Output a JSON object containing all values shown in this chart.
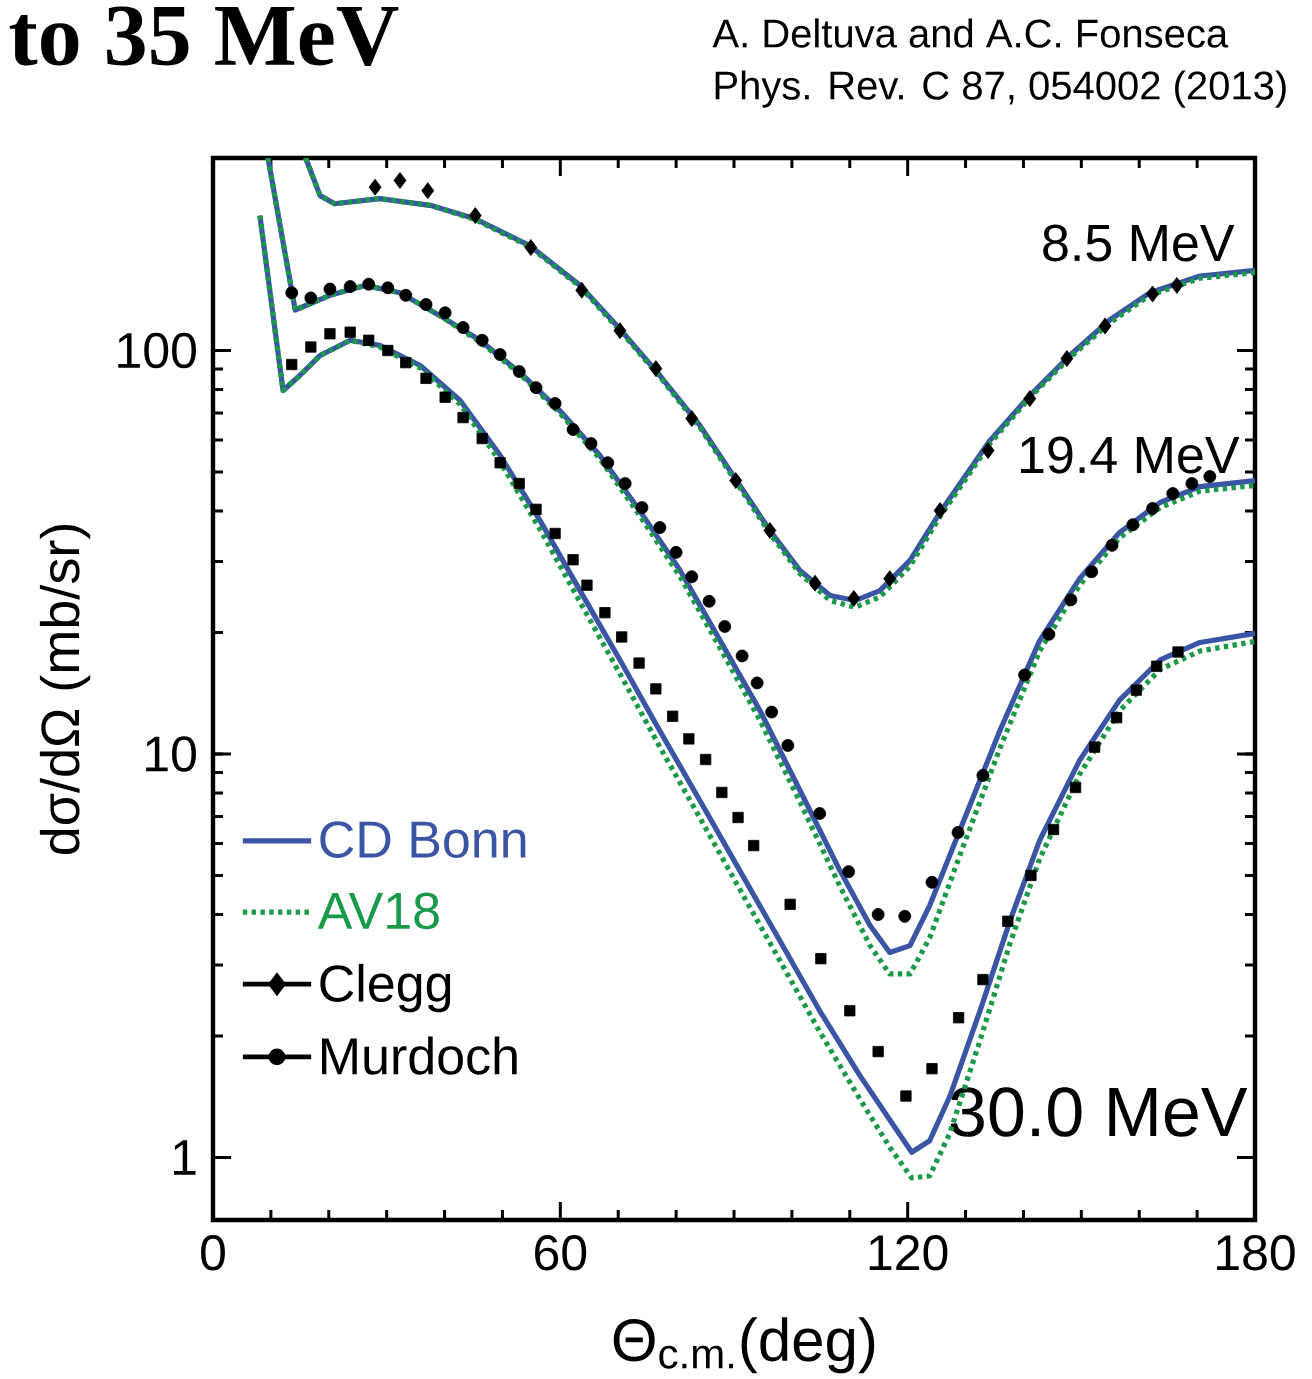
{
  "chart_data": {
    "type": "line",
    "title": "to 35 MeV",
    "xlabel": "Θ$_{c.m.}$(deg)",
    "ylabel": "dσ/dΩ (mb/sr)",
    "annotations": [
      "A. Deltuva and A.C. Fonseca",
      "Phys. Rev. C 87, 054002 (2013)",
      "8.5 MeV",
      "19.4 MeV",
      "30.0 MeV"
    ],
    "xlim": [
      0,
      180
    ],
    "ylim": [
      0.7,
      300
    ],
    "xticks": [
      0,
      60,
      120,
      180
    ],
    "yticks": [
      1,
      10,
      100
    ],
    "log": "y",
    "legend": "left",
    "series": [
      {
        "name": "CD Bonn",
        "type": "line",
        "color": "#3a55a4",
        "line_style": "solid",
        "marker": "none",
        "x": [
          16,
          18.5,
          21,
          28.8,
          37.5,
          45.3,
          54.7,
          63.4,
          70.3,
          77.2,
          84.1,
          90.2,
          96.2,
          101.4,
          106.6,
          110.9,
          115.2,
          120.4,
          125.6,
          134.2,
          141.1,
          148,
          154.9,
          161.8,
          170.5,
          180
        ],
        "values": [
          300,
          242,
          231,
          238,
          229,
          212,
          182,
          145,
          113,
          86.7,
          65.2,
          48.2,
          35.8,
          28.5,
          24.7,
          24.0,
          25.4,
          30.2,
          39.7,
          59.8,
          77.3,
          97.2,
          119,
          139,
          153,
          158
        ]
      },
      {
        "type": "line",
        "color": "#3a55a4",
        "line_style": "solid",
        "marker": "none",
        "x": [
          9.5,
          14.2,
          20.2,
          26.3,
          32.3,
          39.2,
          46.1,
          53,
          59.9,
          66.8,
          73.7,
          80.7,
          87.6,
          94.5,
          101.4,
          108.3,
          113.5,
          116.9,
          120.4,
          123.8,
          129,
          135.9,
          142.8,
          149.7,
          156.6,
          163.6,
          170.5,
          180
        ],
        "values": [
          300,
          126,
          137,
          145,
          139,
          122,
          106,
          88.2,
          71.0,
          55.0,
          40.1,
          28.5,
          19.1,
          12.8,
          8.12,
          5.14,
          3.76,
          3.22,
          3.35,
          4.21,
          6.46,
          11.4,
          19.1,
          27.2,
          35.4,
          42.0,
          46.0,
          47.6
        ]
      },
      {
        "type": "line",
        "color": "#3a55a4",
        "line_style": "solid",
        "marker": "none",
        "x": [
          8.1,
          12.1,
          15,
          18.5,
          23.7,
          28.8,
          35.8,
          42.7,
          49.6,
          56.5,
          63.4,
          70.3,
          77.2,
          84.1,
          91,
          97.9,
          104.8,
          111.7,
          116.9,
          120.7,
          123.8,
          127.3,
          132.5,
          137.7,
          142.8,
          149.7,
          156.6,
          163.6,
          170.5,
          180
        ],
        "values": [
          216,
          79.6,
          86.7,
          97.2,
          106,
          103,
          91.8,
          75.2,
          55.0,
          37.9,
          25.4,
          17.1,
          11.4,
          7.67,
          5.14,
          3.45,
          2.31,
          1.6,
          1.24,
          1.03,
          1.1,
          1.42,
          2.31,
          3.87,
          6.11,
          9.64,
          13.6,
          17.1,
          18.9,
          19.9
        ]
      },
      {
        "name": "AV18",
        "type": "line",
        "color": "#1a9a48",
        "line_style": "dotted",
        "marker": "none",
        "x": [
          16,
          18.5,
          21,
          28.8,
          37.5,
          45.3,
          54.7,
          63.4,
          70.3,
          77.2,
          84.1,
          90.2,
          96.2,
          101.4,
          106.6,
          110.9,
          115.2,
          120.4,
          125.6,
          134.2,
          141.1,
          148,
          154.9,
          161.8,
          170.5,
          180
        ],
        "values": [
          300,
          242,
          231,
          238,
          229,
          211,
          181,
          144,
          112,
          86,
          64.5,
          47.6,
          35.2,
          28.0,
          24.0,
          23.1,
          24.5,
          29.2,
          38.8,
          58.8,
          76.5,
          96,
          117,
          137,
          151,
          156
        ]
      },
      {
        "type": "line",
        "color": "#1a9a48",
        "line_style": "dotted",
        "marker": "none",
        "x": [
          9.5,
          14.2,
          20.2,
          26.3,
          32.3,
          39.2,
          46.1,
          53,
          59.9,
          66.8,
          73.7,
          80.7,
          87.6,
          94.5,
          101.4,
          108.3,
          113.5,
          116.9,
          120.4,
          123.8,
          129,
          135.9,
          142.8,
          149.7,
          156.6,
          163.6,
          170.5,
          180
        ],
        "values": [
          300,
          126,
          137,
          145,
          139,
          122,
          105,
          87.5,
          70.0,
          54.0,
          39.0,
          27.5,
          18.3,
          12.1,
          7.6,
          4.7,
          3.35,
          2.85,
          2.85,
          3.5,
          5.6,
          10.3,
          18.0,
          26.2,
          34.3,
          40.8,
          44.8,
          46.3
        ]
      },
      {
        "type": "line",
        "color": "#1a9a48",
        "line_style": "dotted",
        "marker": "none",
        "x": [
          8.1,
          12.1,
          15,
          18.5,
          23.7,
          28.8,
          35.8,
          42.7,
          49.6,
          56.5,
          63.4,
          70.3,
          77.2,
          84.1,
          91,
          97.9,
          104.8,
          111.7,
          116.9,
          120.7,
          123.8,
          127.3,
          132.5,
          137.7,
          142.8,
          149.7,
          156.6,
          163.6,
          170.5,
          180
        ],
        "values": [
          216,
          79.6,
          86.7,
          97.2,
          106,
          102,
          90.5,
          73.5,
          53.0,
          36.0,
          23.8,
          15.8,
          10.4,
          6.95,
          4.62,
          3.08,
          2.05,
          1.4,
          1.06,
          0.89,
          0.9,
          1.15,
          1.95,
          3.4,
          5.5,
          8.9,
          12.8,
          16.2,
          18.0,
          19.0
        ]
      },
      {
        "name": "Clegg",
        "type": "scatter",
        "color": "#000000",
        "marker": "diamond",
        "x": [
          28,
          32.3,
          37.1,
          45.3,
          54.9,
          63.7,
          70.3,
          76.5,
          82.7,
          90.3,
          96.2,
          104,
          110.7,
          116.9,
          125.6,
          133.9,
          141.1,
          147.5,
          154.1,
          162.3,
          166.5
        ],
        "values": [
          254,
          264,
          249,
          216,
          180,
          141,
          112,
          90.2,
          67.8,
          47.6,
          35.8,
          26.5,
          24.3,
          27.2,
          40.1,
          56.5,
          76.0,
          95.5,
          115,
          138,
          145
        ]
      },
      {
        "name": "Murdoch",
        "type": "scatter",
        "color": "#000000",
        "marker": "circle",
        "x": [
          13.6,
          16.9,
          20.2,
          23.7,
          26.9,
          30.2,
          33.3,
          36.8,
          40.1,
          43.2,
          46.5,
          49.6,
          52.9,
          55.8,
          59.1,
          62.2,
          65.3,
          68.2,
          71.2,
          74.1,
          77.2,
          80,
          82.7,
          85.7,
          88.4,
          91.4,
          94,
          96.5,
          99.3,
          104.8,
          109.8,
          114.9,
          119.5,
          124.2,
          128.7,
          133,
          140.2,
          144.4,
          148.2,
          151.8,
          155.3,
          158.9,
          162.3,
          165.8,
          169.1,
          172.2
        ],
        "values": [
          139,
          135,
          142,
          144,
          146,
          143,
          137,
          130,
          124,
          114,
          106,
          97.7,
          88.7,
          80.9,
          73.9,
          63.7,
          58.8,
          52.7,
          46.8,
          40.8,
          36.4,
          31.6,
          27.5,
          23.9,
          20.7,
          17.5,
          15.0,
          12.7,
          10.5,
          7.12,
          5.11,
          4.0,
          3.96,
          4.81,
          6.39,
          8.85,
          15.7,
          19.8,
          24.1,
          28.3,
          32.9,
          37.0,
          40.6,
          44.2,
          46.8,
          48.7
        ]
      },
      {
        "type": "scatter",
        "color": "#000000",
        "marker": "square",
        "x": [
          13.6,
          16.9,
          20.2,
          23.7,
          26.9,
          30.2,
          33.3,
          36.8,
          40.1,
          43.2,
          46.5,
          49.6,
          52.9,
          55.8,
          59.1,
          62.2,
          64.6,
          67.7,
          70.6,
          73.6,
          76.5,
          79.4,
          82.2,
          85.1,
          87.9,
          90.7,
          93.4,
          99.7,
          105,
          110,
          114.9,
          119.7,
          124.2,
          128.8,
          133,
          137.3,
          141.3,
          145.2,
          149,
          152.3,
          156.1,
          159.5,
          163,
          166.7
        ],
        "values": [
          92.3,
          102,
          110,
          111,
          106,
          100,
          93.3,
          85.3,
          76.6,
          68.2,
          60.5,
          52.7,
          46.8,
          40.4,
          35.2,
          30.3,
          26.2,
          22.4,
          19.5,
          16.8,
          14.5,
          12.4,
          10.9,
          9.69,
          8.03,
          6.96,
          5.93,
          4.24,
          3.11,
          2.31,
          1.83,
          1.42,
          1.66,
          2.22,
          2.76,
          3.85,
          5.0,
          6.5,
          8.26,
          10.4,
          12.3,
          14.4,
          16.5,
          17.9
        ]
      }
    ]
  }
}
